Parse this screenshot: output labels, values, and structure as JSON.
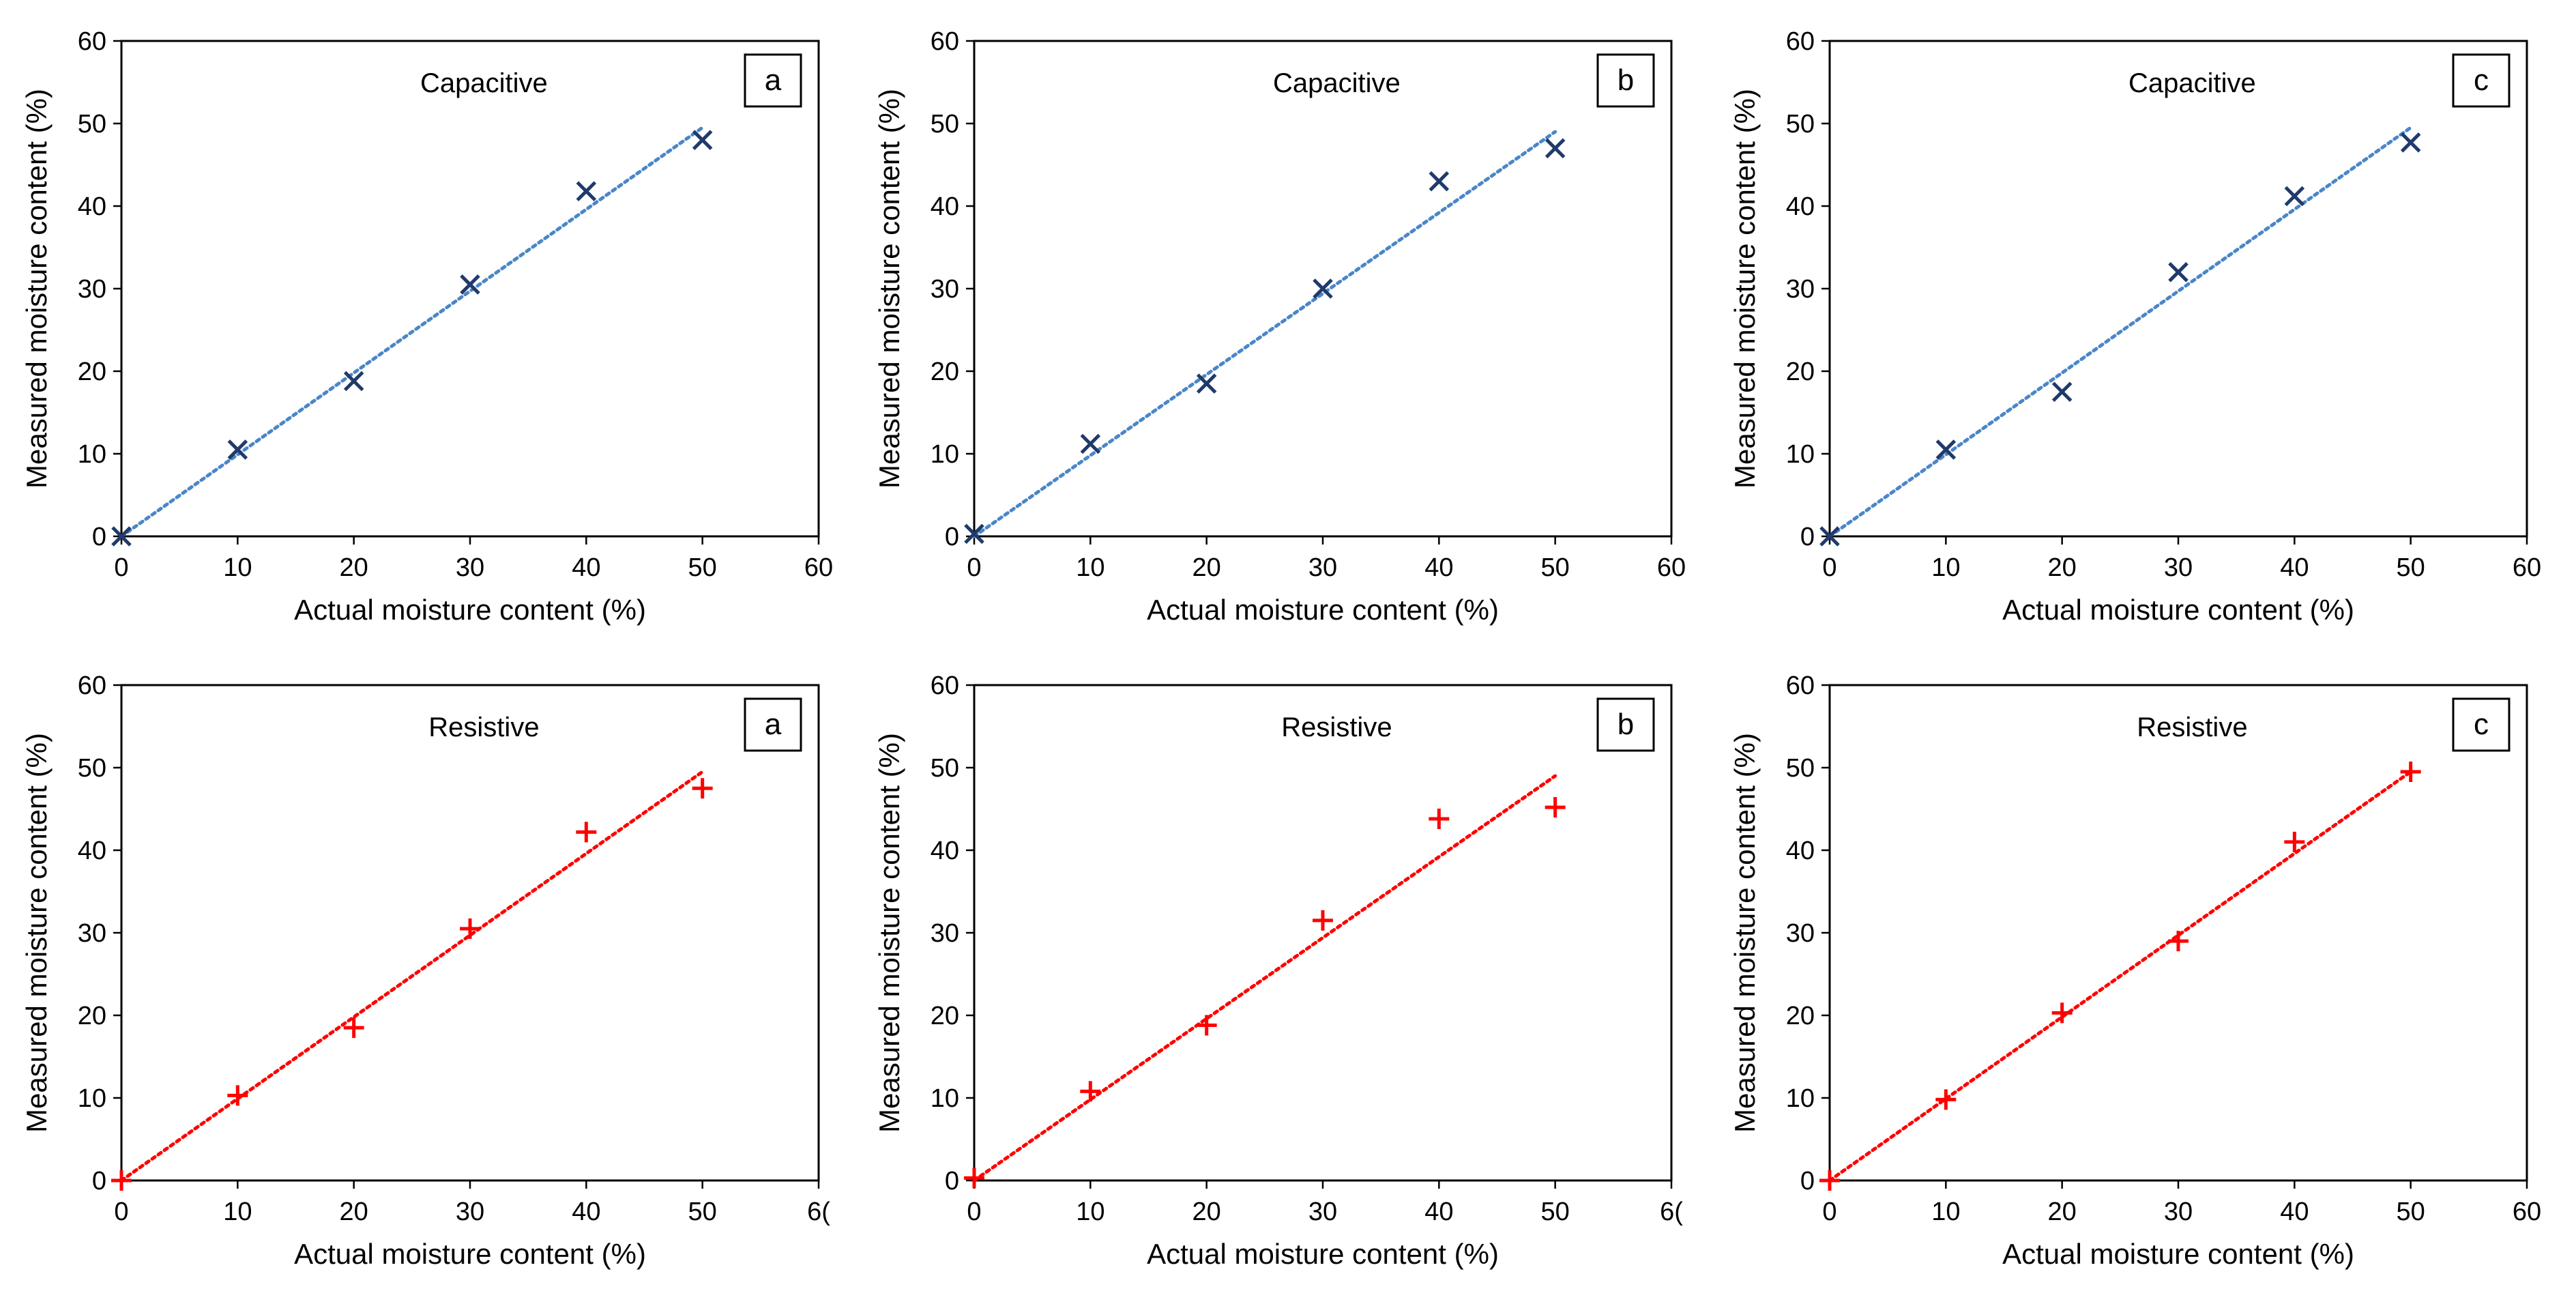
{
  "colors": {
    "capacitive_marker": "#1f3a6b",
    "capacitive_trend": "#4a86c8",
    "resistive_marker": "#ff0000",
    "resistive_trend": "#ff0000",
    "axis": "#000000",
    "background": "#ffffff"
  },
  "chart_data": [
    {
      "id": "cap-a",
      "type": "scatter",
      "sensor": "Capacitive",
      "panel_label": "a",
      "marker": "x",
      "trendline": {
        "type": "linear",
        "x": [
          0,
          50
        ],
        "y": [
          0,
          49.5
        ]
      },
      "xlabel": "Actual moisture content (%)",
      "ylabel": "Measured moisture content (%)",
      "xlim": [
        0,
        60
      ],
      "ylim": [
        0,
        60
      ],
      "xticks": [
        "0",
        "10",
        "20",
        "30",
        "40",
        "50",
        "60"
      ],
      "yticks": [
        "0",
        "10",
        "20",
        "30",
        "40",
        "50",
        "60"
      ],
      "x": [
        0,
        10,
        20,
        30,
        40,
        50
      ],
      "y": [
        0,
        10.5,
        18.8,
        30.5,
        41.8,
        48
      ]
    },
    {
      "id": "cap-b",
      "type": "scatter",
      "sensor": "Capacitive",
      "panel_label": "b",
      "marker": "x",
      "trendline": {
        "type": "linear",
        "x": [
          0,
          50
        ],
        "y": [
          0,
          49
        ]
      },
      "xlabel": "Actual moisture content (%)",
      "ylabel": "Measured moisture content (%)",
      "xlim": [
        0,
        60
      ],
      "ylim": [
        0,
        60
      ],
      "xticks": [
        "0",
        "10",
        "20",
        "30",
        "40",
        "50",
        "60"
      ],
      "yticks": [
        "0",
        "10",
        "20",
        "30",
        "40",
        "50",
        "60"
      ],
      "x": [
        0,
        10,
        20,
        30,
        40,
        50
      ],
      "y": [
        0.3,
        11.2,
        18.5,
        30,
        43,
        47
      ]
    },
    {
      "id": "cap-c",
      "type": "scatter",
      "sensor": "Capacitive",
      "panel_label": "c",
      "marker": "x",
      "trendline": {
        "type": "linear",
        "x": [
          0,
          50
        ],
        "y": [
          0,
          49.5
        ]
      },
      "xlabel": "Actual moisture content (%)",
      "ylabel": "Measured moisture content (%)",
      "xlim": [
        0,
        60
      ],
      "ylim": [
        0,
        60
      ],
      "xticks": [
        "0",
        "10",
        "20",
        "30",
        "40",
        "50",
        "60"
      ],
      "yticks": [
        "0",
        "10",
        "20",
        "30",
        "40",
        "50",
        "60"
      ],
      "x": [
        0,
        10,
        20,
        30,
        40,
        50
      ],
      "y": [
        0,
        10.5,
        17.5,
        32,
        41.2,
        47.7
      ]
    },
    {
      "id": "res-a",
      "type": "scatter",
      "sensor": "Resistive",
      "panel_label": "a",
      "marker": "+",
      "trendline": {
        "type": "linear",
        "x": [
          0,
          50
        ],
        "y": [
          0,
          49.5
        ]
      },
      "xlabel": "Actual moisture content (%)",
      "ylabel": "Measured moisture content (%)",
      "xlim": [
        0,
        60
      ],
      "ylim": [
        0,
        60
      ],
      "xticks": [
        "0",
        "10",
        "20",
        "30",
        "40",
        "50",
        "6("
      ],
      "yticks": [
        "0",
        "10",
        "20",
        "30",
        "40",
        "50",
        "60"
      ],
      "x": [
        0,
        10,
        20,
        30,
        40,
        50
      ],
      "y": [
        0,
        10.3,
        18.5,
        30.5,
        42.2,
        47.5
      ]
    },
    {
      "id": "res-b",
      "type": "scatter",
      "sensor": "Resistive",
      "panel_label": "b",
      "marker": "+",
      "trendline": {
        "type": "linear",
        "x": [
          0,
          50
        ],
        "y": [
          0,
          49
        ]
      },
      "xlabel": "Actual moisture content (%)",
      "ylabel": "Measured moisture content (%)",
      "xlim": [
        0,
        60
      ],
      "ylim": [
        0,
        60
      ],
      "xticks": [
        "0",
        "10",
        "20",
        "30",
        "40",
        "50",
        "6("
      ],
      "yticks": [
        "0",
        "10",
        "20",
        "30",
        "40",
        "50",
        "60"
      ],
      "x": [
        0,
        10,
        20,
        30,
        40,
        50
      ],
      "y": [
        0.3,
        10.8,
        18.8,
        31.5,
        43.8,
        45.2
      ]
    },
    {
      "id": "res-c",
      "type": "scatter",
      "sensor": "Resistive",
      "panel_label": "c",
      "marker": "+",
      "trendline": {
        "type": "linear",
        "x": [
          0,
          50
        ],
        "y": [
          0,
          49.5
        ]
      },
      "xlabel": "Actual moisture content (%)",
      "ylabel": "Measured moisture content (%)",
      "xlim": [
        0,
        60
      ],
      "ylim": [
        0,
        60
      ],
      "xticks": [
        "0",
        "10",
        "20",
        "30",
        "40",
        "50",
        "60"
      ],
      "yticks": [
        "0",
        "10",
        "20",
        "30",
        "40",
        "50",
        "60"
      ],
      "x": [
        0,
        10,
        20,
        30,
        40,
        50
      ],
      "y": [
        0,
        9.8,
        20.3,
        29,
        41,
        49.5
      ]
    }
  ]
}
